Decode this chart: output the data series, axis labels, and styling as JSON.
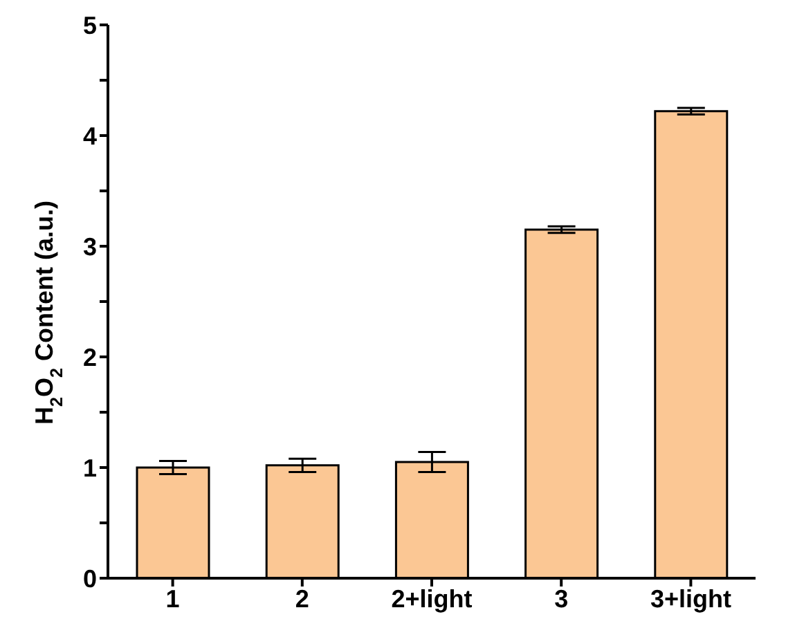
{
  "chart_data": {
    "type": "bar",
    "ylabel": "H$_{2}$O$_{2}$ Content (a.u.)",
    "categories": [
      "1",
      "2",
      "2+light",
      "3",
      "3+light"
    ],
    "values": [
      1.0,
      1.02,
      1.05,
      3.15,
      4.22
    ],
    "errors": [
      0.06,
      0.06,
      0.09,
      0.03,
      0.03
    ],
    "color": "#fbc794",
    "ylim": [
      0,
      5
    ],
    "yticks": [
      0,
      {
        "value": 0.5,
        "label": null
      },
      1,
      {
        "value": 1.5,
        "label": null
      },
      2,
      {
        "value": 2.5,
        "label": null
      },
      3,
      {
        "value": 3.5,
        "label": null
      },
      4,
      {
        "value": 4.5,
        "label": null
      },
      5
    ],
    "grid": false
  }
}
